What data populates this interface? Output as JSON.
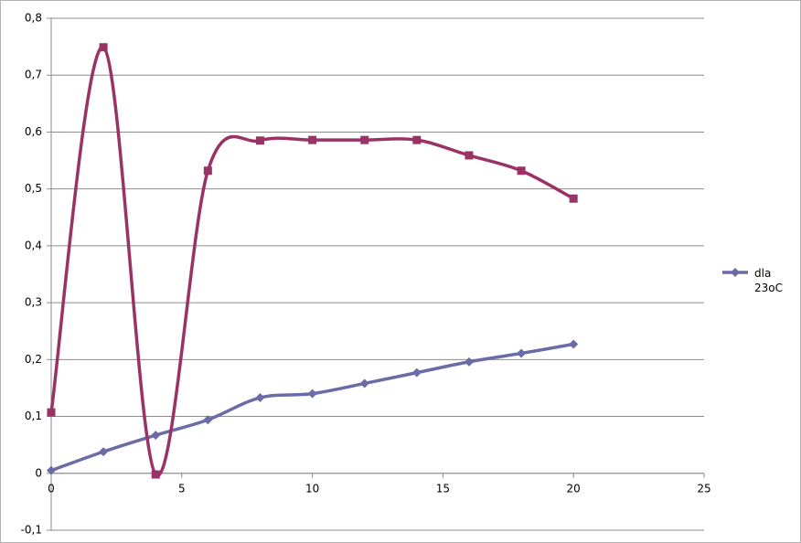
{
  "chart_data": {
    "type": "line",
    "x": [
      0,
      2,
      4,
      6,
      8,
      10,
      12,
      14,
      16,
      18,
      20
    ],
    "series": [
      {
        "name": "dla 23oC",
        "color": "#6b6ba8",
        "marker": "diamond",
        "values": [
          0.005,
          0.038,
          0.067,
          0.094,
          0.133,
          0.14,
          0.158,
          0.177,
          0.196,
          0.211,
          0.227
        ]
      },
      {
        "color": "#993366",
        "marker": "square",
        "values": [
          0.107,
          0.749,
          -0.002,
          0.532,
          0.585,
          0.586,
          0.586,
          0.586,
          0.559,
          0.532,
          0.483
        ]
      }
    ],
    "xlim": [
      0,
      25
    ],
    "xticks": [
      0,
      5,
      10,
      15,
      20,
      25
    ],
    "ylim": [
      -0.1,
      0.8
    ],
    "yticks": [
      {
        "value": -0.1,
        "label": "-0,1"
      },
      {
        "value": 0,
        "label": "0"
      },
      {
        "value": 0.1,
        "label": "0,1"
      },
      {
        "value": 0.2,
        "label": "0,2"
      },
      {
        "value": 0.3,
        "label": "0,3"
      },
      {
        "value": 0.4,
        "label": "0,4"
      },
      {
        "value": 0.5,
        "label": "0,5"
      },
      {
        "value": 0.6,
        "label": "0,6"
      },
      {
        "value": 0.7,
        "label": "0,7"
      },
      {
        "value": 0.8,
        "label": "0,8"
      }
    ],
    "grid": true,
    "smooth": true,
    "legend": "right"
  }
}
